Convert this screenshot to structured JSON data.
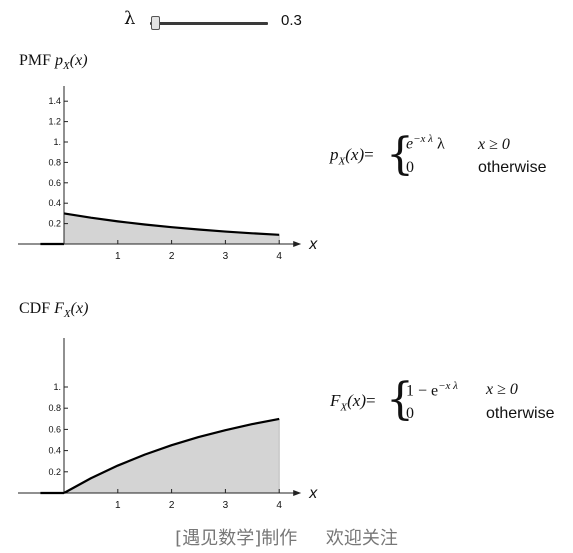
{
  "slider": {
    "label": "λ",
    "value": "0.3",
    "value_num": 0.3,
    "min": 0,
    "max": 10
  },
  "pmf": {
    "title_prefix": "PMF",
    "title_fn": "p",
    "title_sub": "X",
    "title_arg": "(x)",
    "formula": {
      "lhs": "pX(x)=",
      "case1_expr": "e",
      "case1_exp": "−x λ",
      "case1_tail": "λ",
      "case1_cond": "x ≥ 0",
      "case2_expr": "0",
      "case2_cond": "otherwise"
    }
  },
  "cdf": {
    "title_prefix": "CDF",
    "title_fn": "F",
    "title_sub": "X",
    "title_arg": "(x)",
    "formula": {
      "lhs": "FX(x)=",
      "case1_expr": "1 − e",
      "case1_exp": "−x λ",
      "case1_cond": "x ≥ 0",
      "case2_expr": "0",
      "case2_cond": "otherwise"
    }
  },
  "chart_data": [
    {
      "type": "area",
      "title": "PMF pX(x)",
      "xlabel": "x",
      "x_ticks": [
        "1",
        "2",
        "3",
        "4"
      ],
      "y_ticks": [
        "0.2",
        "0.4",
        "0.6",
        "0.8",
        "1.",
        "1.2",
        "1.4"
      ],
      "xlim": [
        -0.55,
        4
      ],
      "ylim": [
        0,
        1.5
      ],
      "x": [
        -0.55,
        0,
        0.5,
        1,
        1.5,
        2,
        2.5,
        3,
        3.5,
        4
      ],
      "y": [
        0,
        0.3,
        0.258,
        0.222,
        0.191,
        0.165,
        0.142,
        0.122,
        0.105,
        0.09
      ]
    },
    {
      "type": "area",
      "title": "CDF FX(x)",
      "xlabel": "x",
      "x_ticks": [
        "1",
        "2",
        "3",
        "4"
      ],
      "y_ticks": [
        "0.2",
        "0.4",
        "0.6",
        "0.8",
        "1."
      ],
      "xlim": [
        -0.55,
        4
      ],
      "ylim": [
        0,
        1.1
      ],
      "x": [
        -0.55,
        0,
        0.5,
        1,
        1.5,
        2,
        2.5,
        3,
        3.5,
        4
      ],
      "y": [
        0,
        0,
        0.139,
        0.259,
        0.362,
        0.451,
        0.528,
        0.593,
        0.65,
        0.699
      ]
    }
  ],
  "footer": "[遇见数学]制作     欢迎关注"
}
